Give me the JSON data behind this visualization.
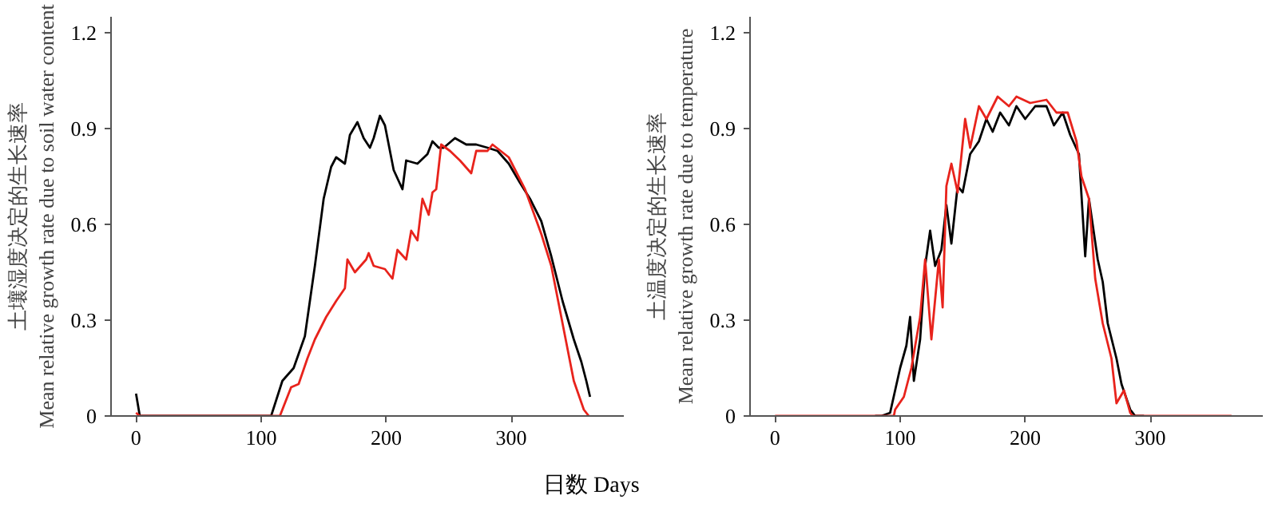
{
  "chart_data": [
    {
      "type": "line",
      "xlabel": "日数 Days",
      "ylabel": "土壤湿度决定的生长速率\nMean relative growth rate due to soil water content",
      "xlim": [
        -20,
        390
      ],
      "ylim": [
        0,
        1.25
      ],
      "xticks": [
        0,
        100,
        200,
        300
      ],
      "yticks": [
        0,
        0.3,
        0.6,
        0.9,
        1.2
      ],
      "grid": false,
      "marker": "none",
      "line_style": "solid",
      "series": [
        {
          "color": "#000000",
          "x": [
            0,
            3,
            108,
            117,
            126,
            135,
            143,
            150,
            156,
            160,
            167,
            171,
            177,
            182,
            187,
            190,
            195,
            199,
            206,
            213,
            216,
            225,
            233,
            237,
            242,
            246,
            255,
            264,
            272,
            281,
            289,
            298,
            307,
            315,
            324,
            332,
            341,
            350,
            356,
            360,
            363
          ],
          "values": [
            0.07,
            0,
            0,
            0.11,
            0.15,
            0.25,
            0.47,
            0.68,
            0.78,
            0.81,
            0.79,
            0.88,
            0.92,
            0.87,
            0.84,
            0.87,
            0.94,
            0.91,
            0.77,
            0.71,
            0.8,
            0.79,
            0.82,
            0.86,
            0.84,
            0.84,
            0.87,
            0.85,
            0.85,
            0.84,
            0.83,
            0.79,
            0.73,
            0.68,
            0.61,
            0.5,
            0.36,
            0.24,
            0.17,
            0.11,
            0.06
          ]
        },
        {
          "color": "#e8231c",
          "x": [
            0,
            3,
            115,
            124,
            130,
            137,
            143,
            152,
            160,
            167,
            169,
            175,
            184,
            186,
            190,
            199,
            205,
            209,
            216,
            220,
            225,
            229,
            234,
            237,
            240,
            244,
            251,
            259,
            268,
            272,
            281,
            285,
            298,
            311,
            324,
            332,
            341,
            350,
            358,
            362
          ],
          "values": [
            0.01,
            0,
            0,
            0.09,
            0.1,
            0.18,
            0.24,
            0.31,
            0.36,
            0.4,
            0.49,
            0.45,
            0.49,
            0.51,
            0.47,
            0.46,
            0.43,
            0.52,
            0.49,
            0.58,
            0.55,
            0.68,
            0.63,
            0.7,
            0.71,
            0.85,
            0.83,
            0.8,
            0.76,
            0.83,
            0.83,
            0.85,
            0.81,
            0.71,
            0.57,
            0.47,
            0.29,
            0.11,
            0.02,
            0
          ]
        }
      ]
    },
    {
      "type": "line",
      "ylabel": "土温度决定的生长速率\nMean relative growth rate due to temperature",
      "xlim": [
        -20,
        390
      ],
      "ylim": [
        0,
        1.25
      ],
      "xticks": [
        0,
        100,
        200,
        300
      ],
      "yticks": [
        0,
        0.3,
        0.6,
        0.9,
        1.2
      ],
      "grid": false,
      "marker": "none",
      "line_style": "solid",
      "series": [
        {
          "color": "#000000",
          "x": [
            80,
            85,
            92,
            96,
            100,
            105,
            108,
            111,
            116,
            120,
            124,
            128,
            133,
            137,
            141,
            146,
            150,
            156,
            163,
            169,
            174,
            180,
            187,
            193,
            200,
            208,
            217,
            223,
            230,
            236,
            243,
            248,
            251,
            258,
            262,
            266,
            273,
            277,
            284,
            288,
            295
          ],
          "values": [
            0,
            0,
            0.01,
            0.08,
            0.15,
            0.22,
            0.31,
            0.11,
            0.24,
            0.47,
            0.58,
            0.47,
            0.52,
            0.66,
            0.54,
            0.72,
            0.7,
            0.82,
            0.86,
            0.93,
            0.89,
            0.95,
            0.91,
            0.97,
            0.93,
            0.97,
            0.97,
            0.91,
            0.95,
            0.88,
            0.82,
            0.5,
            0.68,
            0.49,
            0.42,
            0.29,
            0.18,
            0.1,
            0.02,
            0,
            0
          ]
        },
        {
          "color": "#e8231c",
          "x": [
            0,
            95,
            96,
            103,
            109,
            116,
            120,
            125,
            131,
            134,
            137,
            141,
            146,
            152,
            156,
            163,
            169,
            178,
            187,
            193,
            204,
            217,
            225,
            234,
            241,
            245,
            251,
            256,
            262,
            269,
            273,
            279,
            284,
            286,
            365
          ],
          "values": [
            0,
            0,
            0.02,
            0.06,
            0.15,
            0.31,
            0.49,
            0.24,
            0.49,
            0.34,
            0.72,
            0.79,
            0.7,
            0.93,
            0.84,
            0.97,
            0.93,
            1.0,
            0.97,
            1.0,
            0.98,
            0.99,
            0.95,
            0.95,
            0.86,
            0.75,
            0.68,
            0.43,
            0.29,
            0.18,
            0.04,
            0.08,
            0.01,
            0,
            0
          ]
        }
      ]
    }
  ]
}
